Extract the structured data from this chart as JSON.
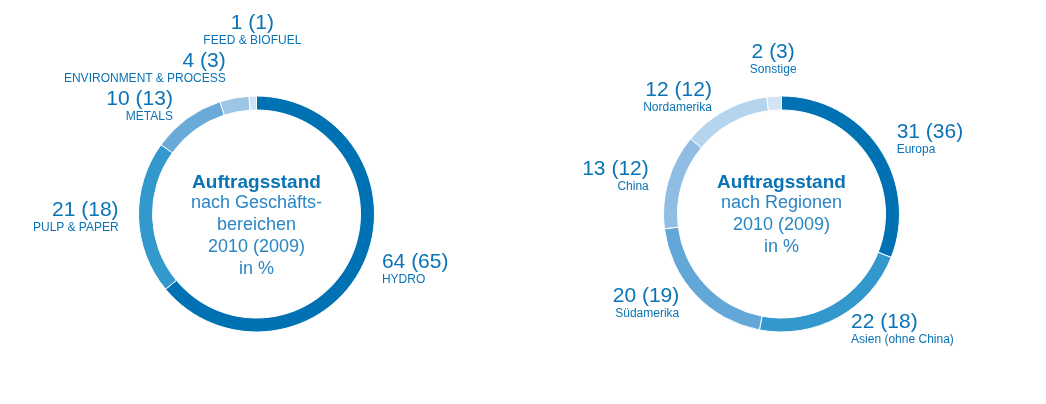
{
  "chart_data": [
    {
      "type": "donut",
      "title": "Auftragsstand",
      "subtitle": "nach Geschäfts-\nbereichen\n2010 (2009)\nin %",
      "categories": [
        "HYDRO",
        "PULP & PAPER",
        "METALS",
        "ENVIRONMENT & PROCESS",
        "FEED & BIOFUEL"
      ],
      "values": [
        64,
        21,
        10,
        4,
        1
      ],
      "value_labels": [
        "64 (65)",
        "21 (18)",
        "10 (13)",
        "4 (3)",
        "1 (1)"
      ],
      "colors": [
        "#0071b3",
        "#3399cc",
        "#6aaad8",
        "#9cc5e6",
        "#cfe2f3"
      ]
    },
    {
      "type": "donut",
      "title": "Auftragsstand",
      "subtitle": "nach Regionen\n2010 (2009)\nin %",
      "categories": [
        "Europa",
        "Asien (ohne China)",
        "Südamerika",
        "China",
        "Nordamerika",
        "Sonstige"
      ],
      "values": [
        31,
        22,
        20,
        13,
        12,
        2
      ],
      "value_labels": [
        "31 (36)",
        "22 (18)",
        "20 (19)",
        "13 (12)",
        "12 (12)",
        "2 (3)"
      ],
      "colors": [
        "#0071b3",
        "#3399cc",
        "#62a7d8",
        "#8fbde3",
        "#b5d4ee",
        "#d3e5f4"
      ]
    }
  ]
}
